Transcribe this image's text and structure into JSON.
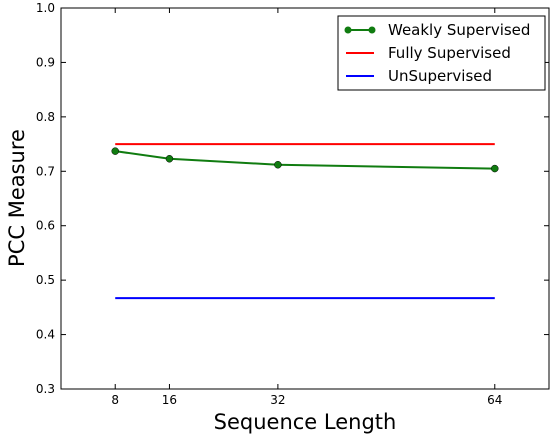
{
  "chart_data": {
    "type": "line",
    "xlabel": "Sequence Length",
    "ylabel": "PCC Measure",
    "xlim": [
      0,
      72
    ],
    "ylim": [
      0.3,
      1.0
    ],
    "x_ticks": [
      8,
      16,
      32,
      64
    ],
    "x_tick_labels": [
      "8",
      "16",
      "32",
      "64"
    ],
    "y_ticks": [
      0.3,
      0.4,
      0.5,
      0.6,
      0.7,
      0.8,
      0.9,
      1.0
    ],
    "y_tick_labels": [
      "0.3",
      "0.4",
      "0.5",
      "0.6",
      "0.7",
      "0.8",
      "0.9",
      "1.0"
    ],
    "grid": false,
    "legend_position": "top-right",
    "series": [
      {
        "name": "Weakly Supervised",
        "color": "#107c10",
        "marker": "circle",
        "x": [
          8,
          16,
          32,
          64
        ],
        "y": [
          0.737,
          0.723,
          0.712,
          0.705
        ]
      },
      {
        "name": "Fully Supervised",
        "color": "#ff0000",
        "marker": "none",
        "x": [
          8,
          64
        ],
        "y": [
          0.75,
          0.75
        ]
      },
      {
        "name": "UnSupervised",
        "color": "#0000ff",
        "marker": "none",
        "x": [
          8,
          64
        ],
        "y": [
          0.467,
          0.467
        ]
      }
    ]
  }
}
